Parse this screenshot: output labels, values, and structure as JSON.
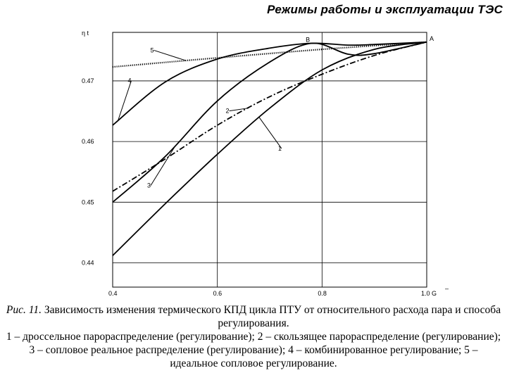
{
  "header": {
    "title": "Режимы работы и эксплуатации ТЭС"
  },
  "chart_data": {
    "type": "line",
    "ylabel": "η t",
    "xlabel": "G",
    "xlabel_suffix": "–",
    "xlim": [
      0.4,
      1.0
    ],
    "ylim": [
      0.436,
      0.478
    ],
    "grid": true,
    "x_ticks": [
      {
        "value": 0.4,
        "label": "0.4"
      },
      {
        "value": 0.6,
        "label": "0.6"
      },
      {
        "value": 0.8,
        "label": "0.8"
      },
      {
        "value": 1.0,
        "label": "1.0"
      }
    ],
    "y_ticks": [
      {
        "value": 0.47,
        "label": "0.47"
      },
      {
        "value": 0.46,
        "label": "0.46"
      },
      {
        "value": 0.45,
        "label": "0.45"
      },
      {
        "value": 0.44,
        "label": "0.44"
      }
    ],
    "series": [
      {
        "name": "1",
        "style": "solid",
        "x": [
          0.4,
          0.5,
          0.6,
          0.7,
          0.8,
          0.9,
          1.0
        ],
        "y": [
          0.4412,
          0.4497,
          0.4579,
          0.4655,
          0.4718,
          0.4752,
          0.4764
        ]
      },
      {
        "name": "2",
        "style": "dashdot",
        "x": [
          0.4,
          0.5,
          0.6,
          0.7,
          0.8,
          0.9,
          1.0
        ],
        "y": [
          0.4518,
          0.4571,
          0.4627,
          0.4674,
          0.4711,
          0.4742,
          0.4764
        ]
      },
      {
        "name": "3",
        "style": "solid",
        "x": [
          0.4,
          0.5,
          0.6,
          0.7,
          0.78,
          0.85,
          0.9,
          1.0
        ],
        "y": [
          0.45,
          0.4575,
          0.4667,
          0.4731,
          0.4762,
          0.4744,
          0.4745,
          0.4764
        ]
      },
      {
        "name": "4",
        "style": "solid",
        "x": [
          0.4,
          0.5,
          0.6,
          0.7,
          0.78,
          0.85,
          0.9,
          1.0
        ],
        "y": [
          0.4627,
          0.4698,
          0.4736,
          0.4754,
          0.4762,
          0.4759,
          0.476,
          0.4764
        ]
      },
      {
        "name": "5",
        "style": "dotted",
        "x": [
          0.4,
          0.6,
          0.8,
          1.0
        ],
        "y": [
          0.4723,
          0.4738,
          0.4752,
          0.4764
        ]
      }
    ],
    "point_labels": [
      {
        "text": "B",
        "x": 0.785,
        "y": 0.4762
      },
      {
        "text": "A",
        "x": 1.0,
        "y": 0.4764
      }
    ],
    "curve_labels": [
      {
        "text": "1",
        "x": 0.72,
        "y": 0.4585
      },
      {
        "text": "2",
        "x": 0.62,
        "y": 0.4647
      },
      {
        "text": "3",
        "x": 0.47,
        "y": 0.4524
      },
      {
        "text": "4",
        "x": 0.433,
        "y": 0.4697
      },
      {
        "text": "5",
        "x": 0.476,
        "y": 0.4747
      }
    ]
  },
  "caption": {
    "fig_number": "Рис. 11.",
    "title": "Зависимость изменения термического КПД цикла ПТУ от относительного расхода пара и способа регулирования.",
    "legend_text": "1 – дроссельное парораспределение (регулирование); 2 – скользящее парораспределение (регулирование); 3 – сопловое реальное распределение (регулирование); 4 – комбинированное регулирование; 5 – идеальное сопловое регулирование."
  }
}
